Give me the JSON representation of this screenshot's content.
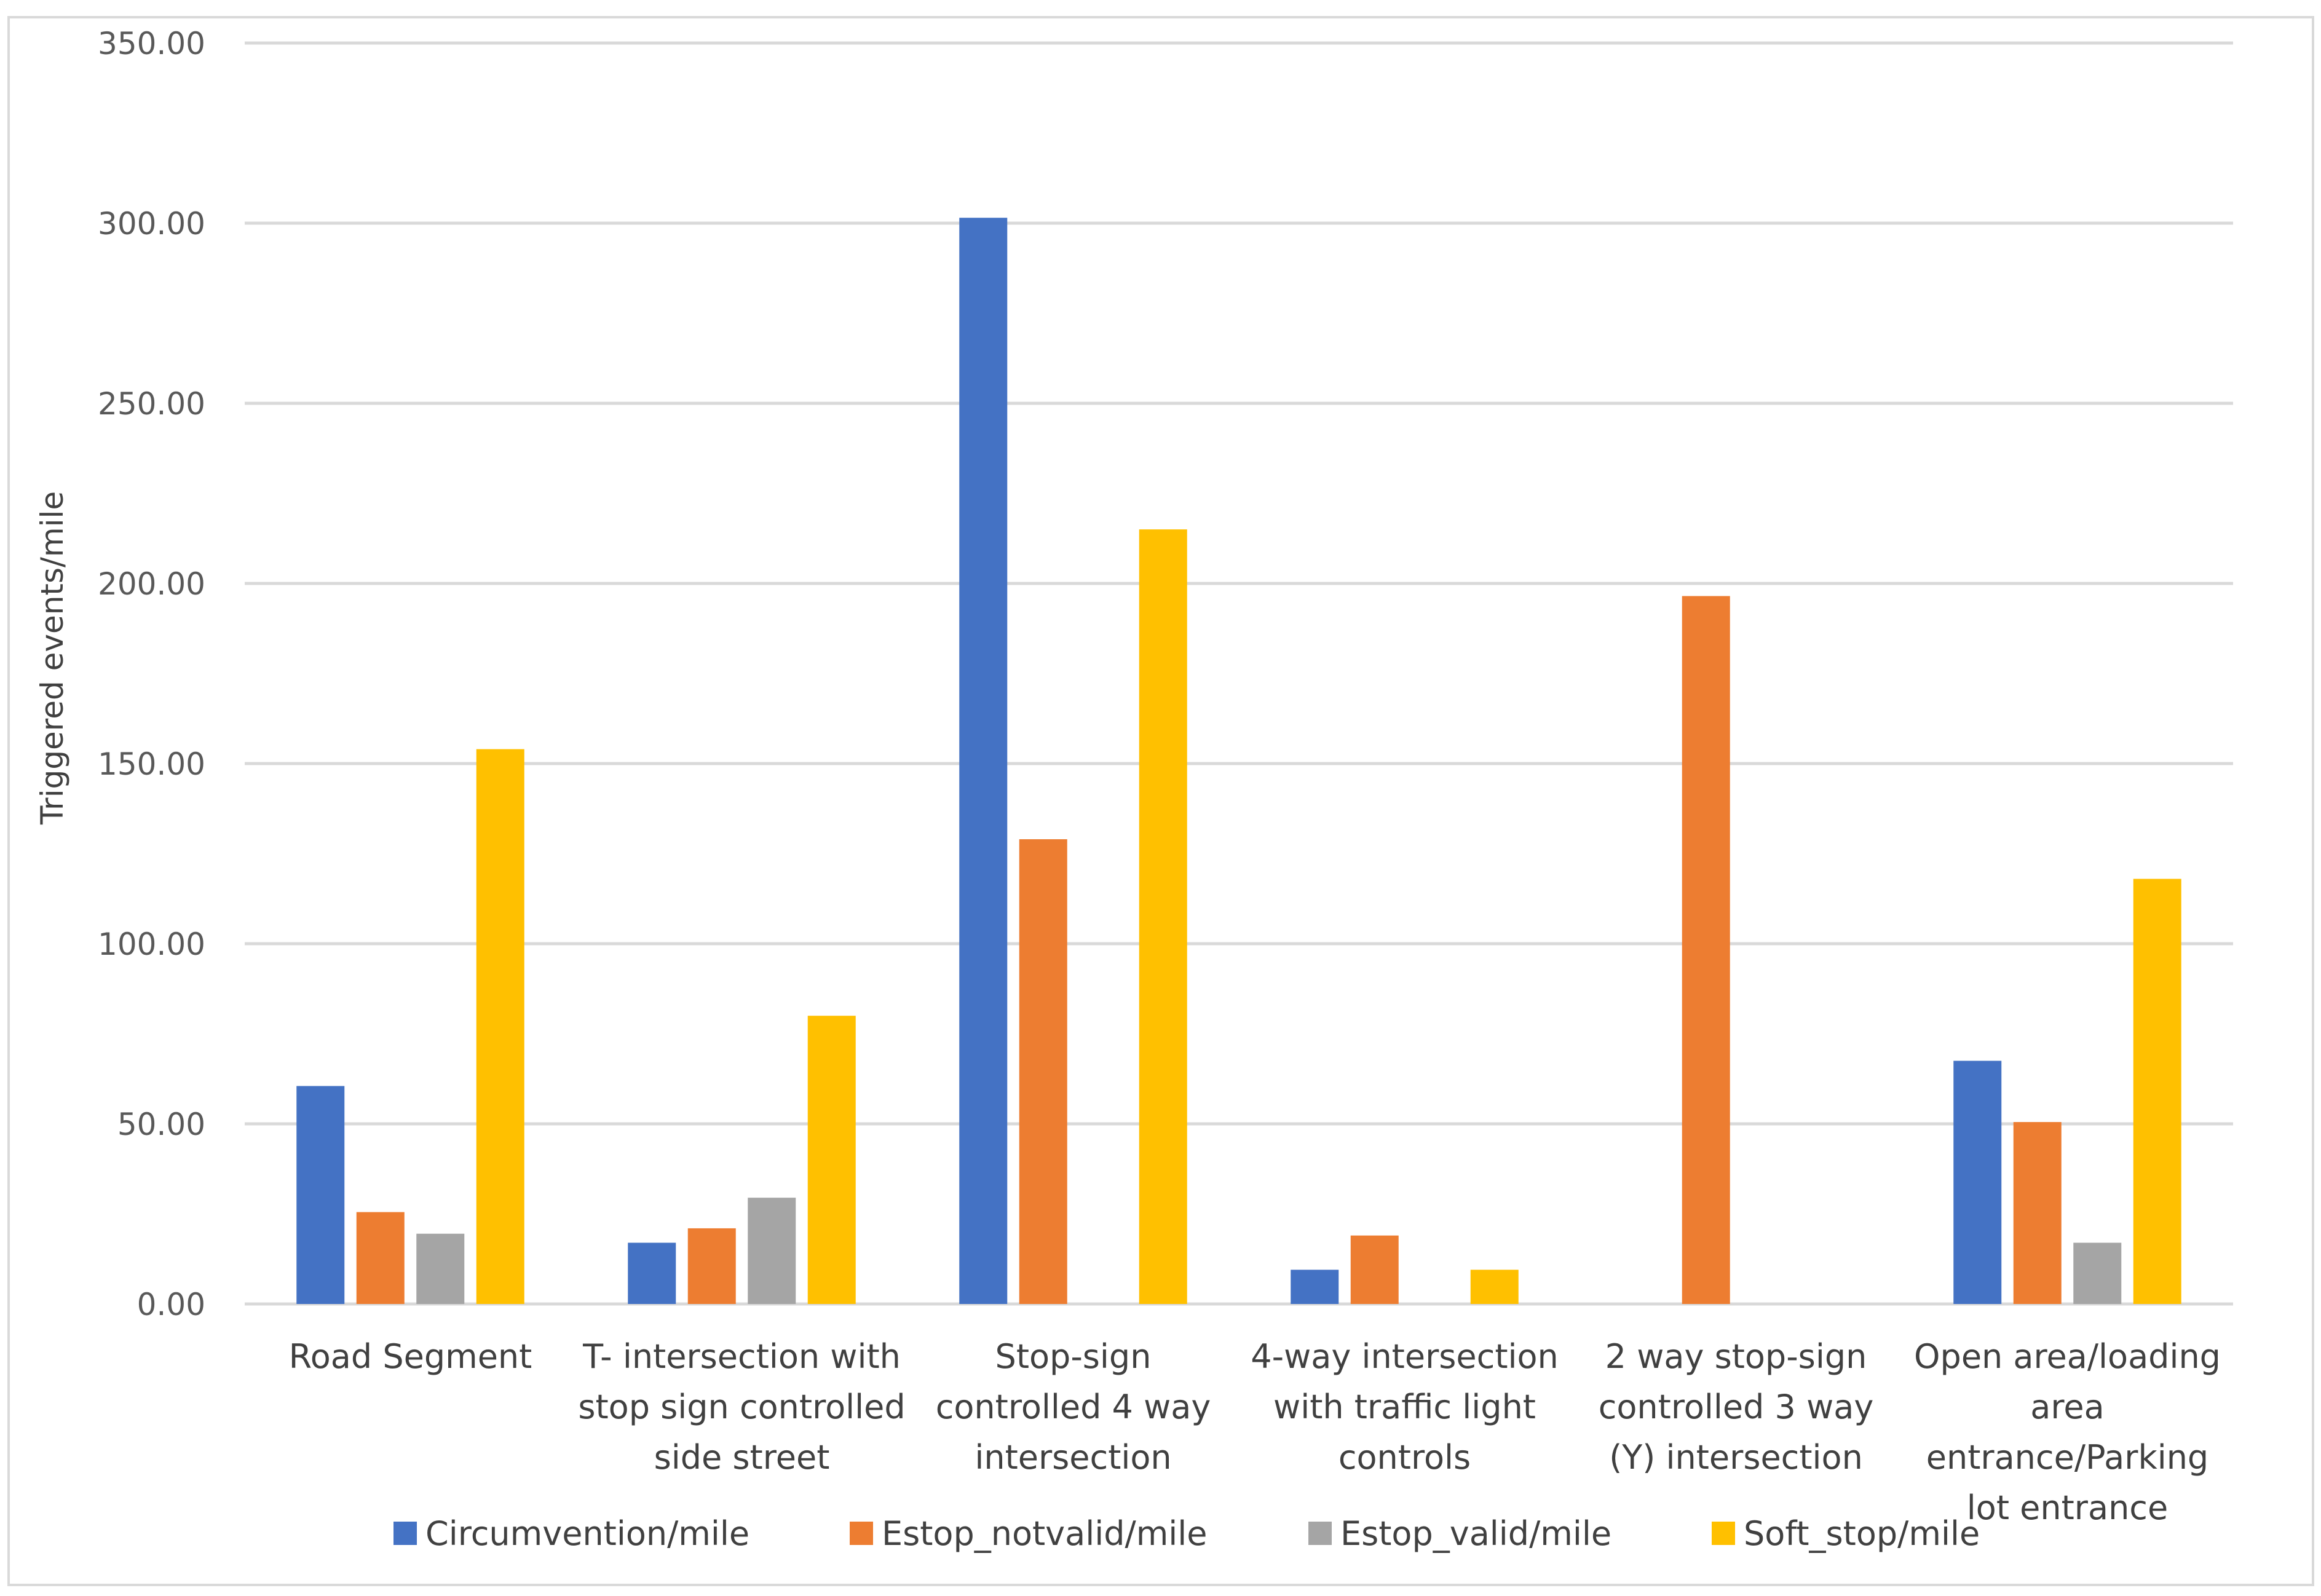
{
  "chart_data": {
    "type": "bar",
    "title": "",
    "xlabel": "",
    "ylabel": "Triggered events/mile",
    "ylim": [
      0,
      350
    ],
    "yticks": [
      "0.00",
      "50.00",
      "100.00",
      "150.00",
      "200.00",
      "250.00",
      "300.00",
      "350.00"
    ],
    "grid": true,
    "legend_position": "bottom",
    "categories": [
      [
        "Road Segment"
      ],
      [
        "T- intersection with",
        "stop sign controlled",
        "side street"
      ],
      [
        "Stop-sign",
        "controlled 4 way",
        "intersection"
      ],
      [
        "4-way intersection",
        "with traffic light",
        "controls"
      ],
      [
        "2 way stop-sign",
        "controlled 3 way",
        "(Y) intersection"
      ],
      [
        "Open area/loading",
        "area",
        "entrance/Parking",
        "lot entrance"
      ]
    ],
    "series": [
      {
        "name": "Circumvention/mile",
        "color": "#4472c4",
        "values": [
          60.5,
          17,
          301.5,
          9.5,
          0,
          67.5
        ]
      },
      {
        "name": "Estop_notvalid/mile",
        "color": "#ed7d31",
        "values": [
          25.5,
          21,
          129,
          19,
          196.5,
          50.5
        ]
      },
      {
        "name": "Estop_valid/mile",
        "color": "#a5a5a5",
        "values": [
          19.5,
          29.5,
          0,
          0,
          0,
          17
        ]
      },
      {
        "name": "Soft_stop/mile",
        "color": "#ffc000",
        "values": [
          154,
          80,
          215,
          9.5,
          0,
          118
        ]
      }
    ]
  }
}
